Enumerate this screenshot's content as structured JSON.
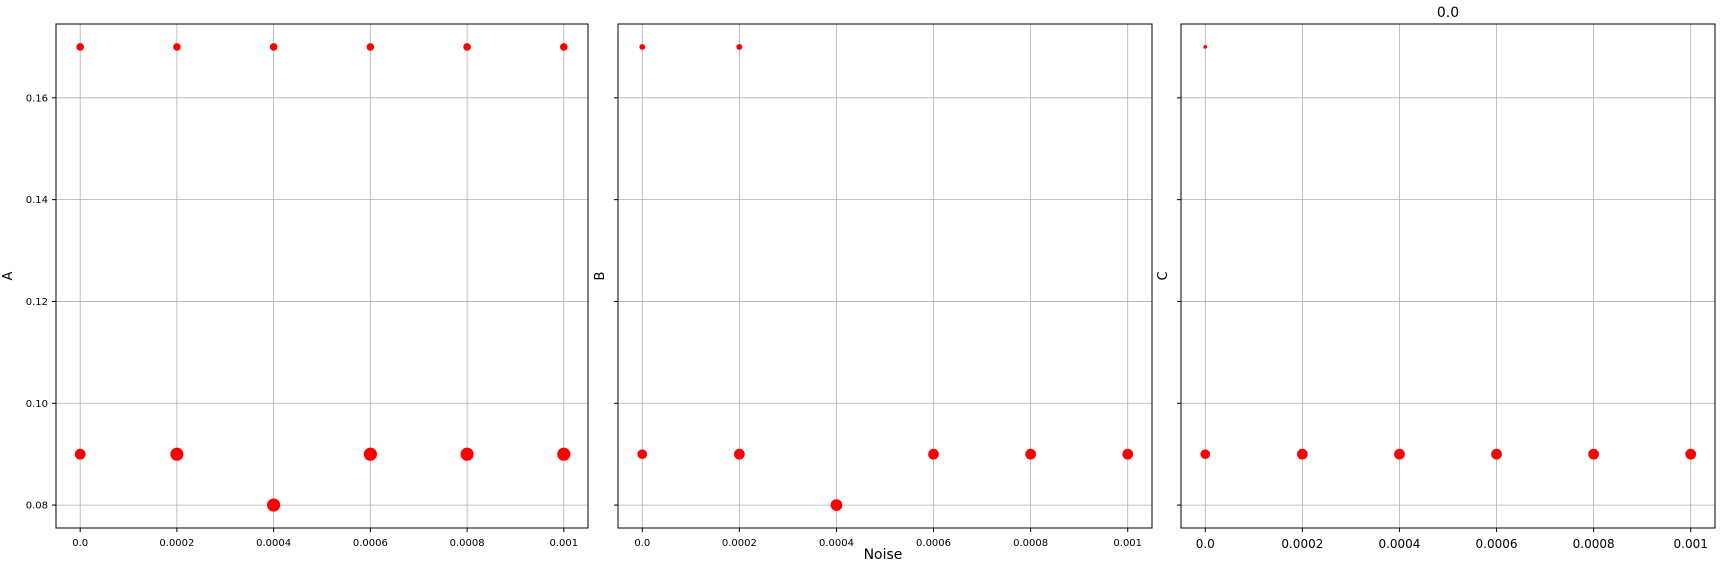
{
  "figure": {
    "xlabel": "Noise",
    "colors": {
      "points": "#ff0000",
      "grid": "#b0b0b0",
      "frame": "#000000"
    },
    "grid": true
  },
  "chart_data": [
    {
      "type": "scatter",
      "title": "",
      "xlabel": "",
      "ylabel": "A",
      "xlim": [
        -5e-05,
        0.00105
      ],
      "ylim": [
        0.0755,
        0.1745
      ],
      "xticks": [
        0,
        0.0002,
        0.0004,
        0.0006,
        0.0008,
        0.001
      ],
      "xtick_labels": [
        "0.0",
        "0.0002",
        "0.0004",
        "0.0006",
        "0.0008",
        "0.001"
      ],
      "yticks": [
        0.08,
        0.1,
        0.12,
        0.14,
        0.16
      ],
      "ytick_labels": [
        "0.08",
        "0.10",
        "0.12",
        "0.14",
        "0.16"
      ],
      "points": [
        {
          "x": 0,
          "y": 0.17,
          "size": 1
        },
        {
          "x": 0.0002,
          "y": 0.17,
          "size": 1
        },
        {
          "x": 0.0004,
          "y": 0.17,
          "size": 1
        },
        {
          "x": 0.0006,
          "y": 0.17,
          "size": 1
        },
        {
          "x": 0.0008,
          "y": 0.17,
          "size": 1
        },
        {
          "x": 0.001,
          "y": 0.17,
          "size": 1
        },
        {
          "x": 0,
          "y": 0.09,
          "size": 2
        },
        {
          "x": 0.0002,
          "y": 0.09,
          "size": 3
        },
        {
          "x": 0.0004,
          "y": 0.08,
          "size": 3
        },
        {
          "x": 0.0006,
          "y": 0.09,
          "size": 3
        },
        {
          "x": 0.0008,
          "y": 0.09,
          "size": 3
        },
        {
          "x": 0.001,
          "y": 0.09,
          "size": 3
        }
      ]
    },
    {
      "type": "scatter",
      "title": "",
      "xlabel": "Noise",
      "ylabel": "B",
      "xlim": [
        -5e-05,
        0.00105
      ],
      "ylim": [
        0.0755,
        0.1745
      ],
      "xticks": [
        0,
        0.0002,
        0.0004,
        0.0006,
        0.0008,
        0.001
      ],
      "xtick_labels": [
        "0.0",
        "0.0002",
        "0.0004",
        "0.0006",
        "0.0008",
        "0.001"
      ],
      "yticks": [
        0.08,
        0.1,
        0.12,
        0.14,
        0.16
      ],
      "ytick_labels": [
        "",
        "",
        "",
        "",
        ""
      ],
      "points": [
        {
          "x": 0,
          "y": 0.17,
          "size": 0.6
        },
        {
          "x": 0.0002,
          "y": 0.17,
          "size": 0.6
        },
        {
          "x": 0,
          "y": 0.09,
          "size": 1.6
        },
        {
          "x": 0.0002,
          "y": 0.09,
          "size": 2
        },
        {
          "x": 0.0004,
          "y": 0.08,
          "size": 2.4
        },
        {
          "x": 0.0006,
          "y": 0.09,
          "size": 2
        },
        {
          "x": 0.0008,
          "y": 0.09,
          "size": 2
        },
        {
          "x": 0.001,
          "y": 0.09,
          "size": 2
        }
      ]
    },
    {
      "type": "scatter",
      "title": "0.0",
      "xlabel": "",
      "ylabel": "C",
      "xlim": [
        -5e-05,
        0.00105
      ],
      "ylim": [
        0.0755,
        0.1745
      ],
      "xticks": [
        0,
        0.0002,
        0.0004,
        0.0006,
        0.0008,
        0.001
      ],
      "xtick_labels": [
        "0.0",
        "0.0002",
        "0.0004",
        "0.0006",
        "0.0008",
        "0.001"
      ],
      "yticks": [
        0.08,
        0.1,
        0.12,
        0.14,
        0.16
      ],
      "ytick_labels": [
        "",
        "",
        "",
        "",
        ""
      ],
      "points": [
        {
          "x": 0,
          "y": 0.17,
          "size": 0.25
        },
        {
          "x": 0,
          "y": 0.09,
          "size": 1.6
        },
        {
          "x": 0.0002,
          "y": 0.09,
          "size": 2
        },
        {
          "x": 0.0004,
          "y": 0.09,
          "size": 2
        },
        {
          "x": 0.0006,
          "y": 0.09,
          "size": 2
        },
        {
          "x": 0.0008,
          "y": 0.09,
          "size": 2
        },
        {
          "x": 0.001,
          "y": 0.09,
          "size": 2
        }
      ]
    }
  ]
}
